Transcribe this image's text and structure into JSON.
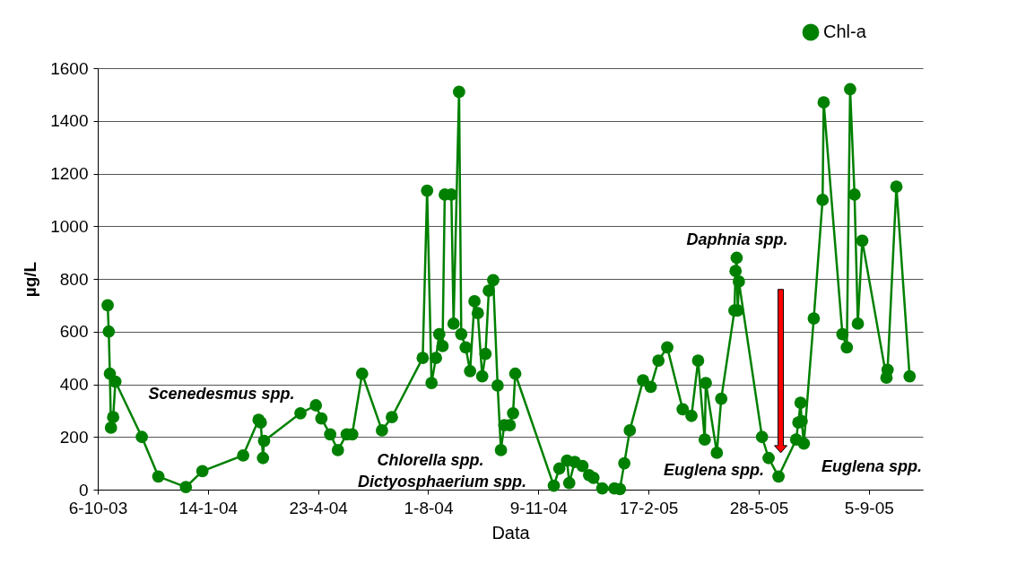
{
  "chart_data": {
    "type": "line",
    "xlabel": "Data",
    "ylabel": "µg/L",
    "xlim": [
      "2003-10-06",
      "2005-10-24"
    ],
    "xticks": [
      {
        "value": "2003-10-06",
        "label": "6-10-03"
      },
      {
        "value": "2004-01-14",
        "label": "14-1-04"
      },
      {
        "value": "2004-04-23",
        "label": "23-4-04"
      },
      {
        "value": "2004-08-01",
        "label": "1-8-04"
      },
      {
        "value": "2004-11-09",
        "label": "9-11-04"
      },
      {
        "value": "2005-02-17",
        "label": "17-2-05"
      },
      {
        "value": "2005-05-28",
        "label": "28-5-05"
      },
      {
        "value": "2005-09-05",
        "label": "5-9-05"
      }
    ],
    "ylim": [
      0,
      1600
    ],
    "yticks": [
      0,
      200,
      400,
      600,
      800,
      1000,
      1200,
      1400,
      1600
    ],
    "grid": "y",
    "legend": "top right",
    "marker": "circle",
    "x": [
      "2003-10-15",
      "2003-10-16",
      "2003-10-17",
      "2003-10-18",
      "2003-10-20",
      "2003-10-22",
      "2003-11-15",
      "2003-11-30",
      "2003-12-25",
      "2004-01-09",
      "2004-02-15",
      "2004-02-29",
      "2004-03-02",
      "2004-03-04",
      "2004-03-05",
      "2004-04-07",
      "2004-04-21",
      "2004-04-26",
      "2004-05-04",
      "2004-05-11",
      "2004-05-19",
      "2004-05-24",
      "2004-06-02",
      "2004-06-20",
      "2004-06-29",
      "2004-07-27",
      "2004-07-31",
      "2004-08-04",
      "2004-08-08",
      "2004-08-11",
      "2004-08-14",
      "2004-08-16",
      "2004-08-22",
      "2004-08-24",
      "2004-08-29",
      "2004-08-31",
      "2004-09-04",
      "2004-09-08",
      "2004-09-12",
      "2004-09-15",
      "2004-09-19",
      "2004-09-22",
      "2004-09-25",
      "2004-09-29",
      "2004-10-03",
      "2004-10-06",
      "2004-10-09",
      "2004-10-14",
      "2004-10-17",
      "2004-10-19",
      "2004-11-23",
      "2004-11-28",
      "2004-12-05",
      "2004-12-07",
      "2004-12-12",
      "2004-12-19",
      "2004-12-25",
      "2004-12-29",
      "2005-01-06",
      "2005-01-17",
      "2005-01-22",
      "2005-01-26",
      "2005-01-31",
      "2005-02-12",
      "2005-02-19",
      "2005-02-26",
      "2005-03-06",
      "2005-03-20",
      "2005-03-28",
      "2005-04-03",
      "2005-04-09",
      "2005-04-10",
      "2005-04-20",
      "2005-04-24",
      "2005-05-06",
      "2005-05-07",
      "2005-05-08",
      "2005-05-09",
      "2005-05-10",
      "2005-05-31",
      "2005-06-06",
      "2005-06-15",
      "2005-07-01",
      "2005-07-03",
      "2005-07-05",
      "2005-07-06",
      "2005-07-08",
      "2005-07-17",
      "2005-07-25",
      "2005-07-26",
      "2005-08-12",
      "2005-08-16",
      "2005-08-19",
      "2005-08-23",
      "2005-08-26",
      "2005-08-30",
      "2005-09-21",
      "2005-09-22",
      "2005-09-30",
      "2005-10-12"
    ],
    "series": [
      {
        "name": "Chl-a",
        "color": "#008000",
        "values": [
          700,
          600,
          440,
          235,
          275,
          410,
          200,
          50,
          10,
          70,
          130,
          265,
          255,
          120,
          185,
          290,
          320,
          270,
          210,
          150,
          210,
          210,
          440,
          225,
          275,
          500,
          1135,
          405,
          500,
          590,
          545,
          1120,
          1120,
          630,
          1510,
          590,
          540,
          450,
          715,
          670,
          430,
          515,
          755,
          795,
          395,
          150,
          245,
          245,
          290,
          440,
          15,
          80,
          110,
          25,
          105,
          90,
          55,
          45,
          5,
          5,
          2,
          100,
          225,
          415,
          390,
          490,
          540,
          305,
          280,
          490,
          190,
          405,
          140,
          345,
          680,
          830,
          880,
          680,
          790,
          200,
          120,
          50,
          190,
          255,
          330,
          260,
          175,
          650,
          1100,
          1470,
          590,
          540,
          1520,
          1120,
          630,
          945,
          425,
          455,
          1150,
          430
        ]
      }
    ],
    "annotations": [
      "Scenedesmus spp.",
      "Chlorella spp.",
      "Dictyosphaerium spp.",
      "Daphnia spp.",
      "Euglena spp.",
      "Euglena spp."
    ]
  }
}
